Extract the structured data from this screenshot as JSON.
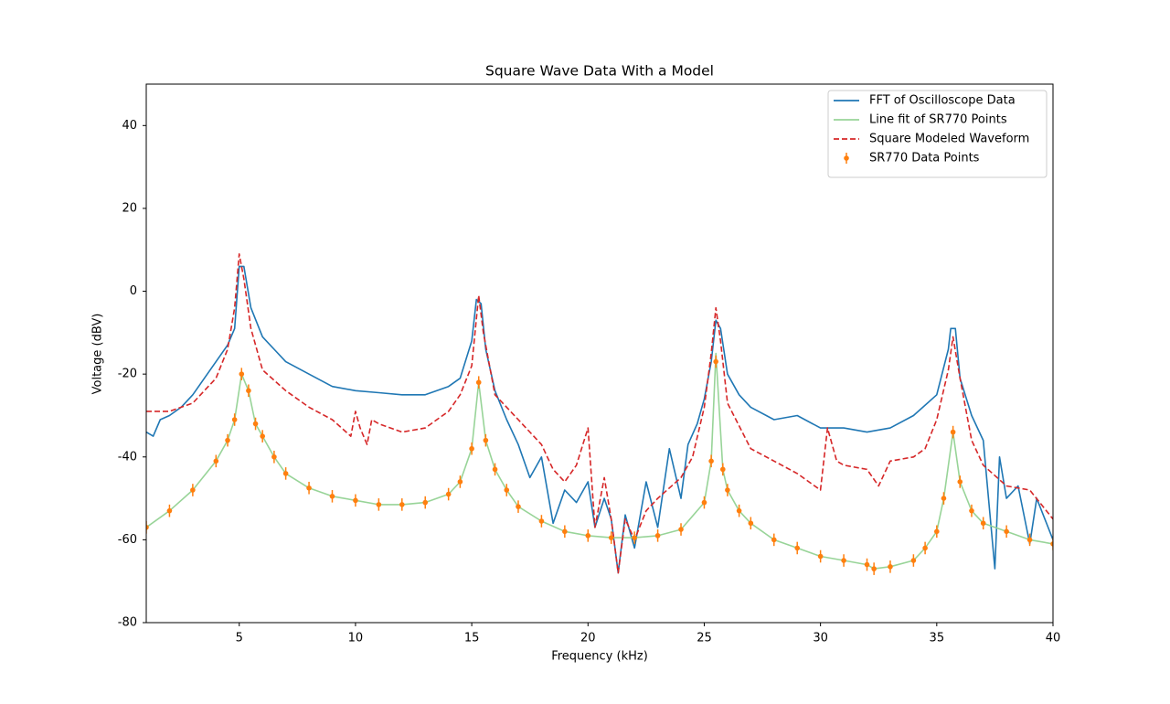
{
  "chart_data": {
    "type": "line",
    "title": "Square Wave Data With a Model",
    "x_label": "Frequency (kHz)",
    "y_label": "Voltage (dBV)",
    "xlim": [
      1,
      40
    ],
    "ylim": [
      -80,
      50
    ],
    "xticks": [
      5,
      10,
      15,
      20,
      25,
      30,
      35,
      40
    ],
    "yticks": [
      -80,
      -60,
      -40,
      -20,
      0,
      20,
      40
    ],
    "legend": "upper right",
    "grid": false,
    "series": [
      {
        "name": "FFT of Oscilloscope Data",
        "color": "#1f77b4",
        "style": "solid",
        "x": [
          1,
          1.3,
          1.6,
          2,
          2.5,
          3,
          3.5,
          4,
          4.5,
          4.8,
          5.0,
          5.2,
          5.5,
          6,
          6.5,
          7,
          8,
          9,
          10,
          11,
          12,
          13,
          14,
          14.5,
          15,
          15.2,
          15.4,
          15.6,
          16,
          16.5,
          17,
          17.5,
          18,
          18.5,
          19,
          19.5,
          20,
          20.3,
          20.7,
          21,
          21.3,
          21.6,
          22,
          22.5,
          23,
          23.5,
          24,
          24.3,
          24.7,
          25,
          25.3,
          25.5,
          25.7,
          26,
          26.5,
          27,
          28,
          29,
          30,
          31,
          32,
          33,
          34,
          35,
          35.5,
          35.6,
          35.8,
          36,
          36.5,
          37,
          37.5,
          37.7,
          38,
          38.5,
          39,
          39.3,
          40
        ],
        "values": [
          -34,
          -35,
          -31,
          -30,
          -28,
          -25,
          -21,
          -17,
          -13,
          -9,
          6,
          6,
          -4,
          -11,
          -14,
          -17,
          -20,
          -23,
          -24,
          -24.5,
          -25,
          -25,
          -23,
          -21,
          -12,
          -2,
          -3,
          -14,
          -24,
          -31,
          -37,
          -45,
          -40,
          -56,
          -48,
          -51,
          -46,
          -57,
          -50,
          -55,
          -68,
          -54,
          -62,
          -46,
          -57,
          -38,
          -50,
          -37,
          -32,
          -26,
          -17,
          -7,
          -9,
          -20,
          -25,
          -28,
          -31,
          -30,
          -33,
          -33,
          -34,
          -33,
          -30,
          -25,
          -14,
          -9,
          -9,
          -21,
          -30,
          -36,
          -67,
          -40,
          -50,
          -47,
          -61,
          -50,
          -60
        ]
      },
      {
        "name": "Line fit of SR770 Points",
        "color": "#98d498",
        "style": "solid",
        "x": [
          1,
          2,
          3,
          4,
          4.5,
          4.8,
          5.1,
          5.4,
          5.7,
          6,
          6.5,
          7,
          8,
          9,
          10,
          11,
          12,
          13,
          14,
          14.5,
          15,
          15.3,
          15.6,
          16,
          16.5,
          17,
          18,
          19,
          20,
          21,
          22,
          23,
          24,
          25,
          25.3,
          25.5,
          25.8,
          26,
          26.5,
          27,
          28,
          29,
          30,
          31,
          32,
          32.3,
          33,
          34,
          34.5,
          35,
          35.3,
          35.7,
          36,
          36.5,
          37,
          38,
          39,
          40
        ],
        "values": [
          -57,
          -53,
          -48,
          -41,
          -36,
          -31,
          -20,
          -24,
          -32,
          -35,
          -40,
          -44,
          -47.5,
          -49.5,
          -50.5,
          -51.5,
          -51.5,
          -51,
          -49,
          -46,
          -38,
          -22,
          -36,
          -43,
          -48,
          -52,
          -55.5,
          -58,
          -59,
          -59.5,
          -59.5,
          -59,
          -57.5,
          -51,
          -41,
          -15,
          -43,
          -48,
          -53,
          -56,
          -60,
          -62,
          -64,
          -65,
          -66,
          -67,
          -66.5,
          -65,
          -62,
          -58,
          -50,
          -34,
          -46,
          -53,
          -56,
          -58,
          -60,
          -61
        ]
      },
      {
        "name": "Square Modeled Waveform",
        "color": "#d62728",
        "style": "dashed",
        "x": [
          1,
          2,
          3,
          4,
          4.5,
          4.8,
          5.0,
          5.2,
          5.5,
          6,
          7,
          8,
          9,
          9.8,
          10,
          10.2,
          10.5,
          10.7,
          11,
          12,
          13,
          14,
          14.5,
          15,
          15.3,
          15.5,
          16,
          17,
          18,
          18.5,
          19,
          19.5,
          20,
          20.3,
          20.7,
          21,
          21.3,
          21.6,
          22,
          22.5,
          23,
          24,
          24.5,
          25,
          25.3,
          25.5,
          25.7,
          26,
          27,
          28,
          29,
          30,
          30.3,
          30.7,
          31,
          32,
          32.5,
          33,
          34,
          34.5,
          35,
          35.5,
          35.7,
          36,
          36.5,
          37,
          38,
          39,
          40
        ],
        "values": [
          -29,
          -29,
          -27,
          -21,
          -14,
          -4,
          9,
          3,
          -9,
          -19,
          -24,
          -28,
          -31,
          -35,
          -29,
          -33,
          -37,
          -31,
          -32,
          -34,
          -33,
          -29,
          -25,
          -18,
          -1,
          -10,
          -25,
          -31,
          -37,
          -43,
          -46,
          -42,
          -33,
          -57,
          -45,
          -55,
          -68,
          -55,
          -60,
          -53,
          -50,
          -45,
          -40,
          -28,
          -15,
          -4,
          -12,
          -27,
          -38,
          -41,
          -44,
          -48,
          -33,
          -41,
          -42,
          -43,
          -47,
          -41,
          -40,
          -38,
          -31,
          -19,
          -11,
          -21,
          -36,
          -42,
          -47,
          -48,
          -55
        ]
      },
      {
        "name": "SR770 Data Points",
        "color": "#ff7f0e",
        "style": "errorbar",
        "x": [
          1,
          2,
          3,
          4,
          4.5,
          4.8,
          5.1,
          5.4,
          5.7,
          6,
          6.5,
          7,
          8,
          9,
          10,
          11,
          12,
          13,
          14,
          14.5,
          15,
          15.3,
          15.6,
          16,
          16.5,
          17,
          18,
          19,
          20,
          21,
          22,
          23,
          24,
          25,
          25.3,
          25.5,
          25.8,
          26,
          26.5,
          27,
          28,
          29,
          30,
          31,
          32,
          32.3,
          33,
          34,
          34.5,
          35,
          35.3,
          35.7,
          36,
          36.5,
          37,
          38,
          39,
          40
        ],
        "values": [
          -57,
          -53,
          -48,
          -41,
          -36,
          -31,
          -20,
          -24,
          -32,
          -35,
          -40,
          -44,
          -47.5,
          -49.5,
          -50.5,
          -51.5,
          -51.5,
          -51,
          -49,
          -46,
          -38,
          -22,
          -36,
          -43,
          -48,
          -52,
          -55.5,
          -58,
          -59,
          -59.5,
          -59.5,
          -59,
          -57.5,
          -51,
          -41,
          -17,
          -43,
          -48,
          -53,
          -56,
          -60,
          -62,
          -64,
          -65,
          -66,
          -67,
          -66.5,
          -65,
          -62,
          -58,
          -50,
          -34,
          -46,
          -53,
          -56,
          -58,
          -60,
          -61
        ],
        "yerr": 1.5
      }
    ]
  }
}
